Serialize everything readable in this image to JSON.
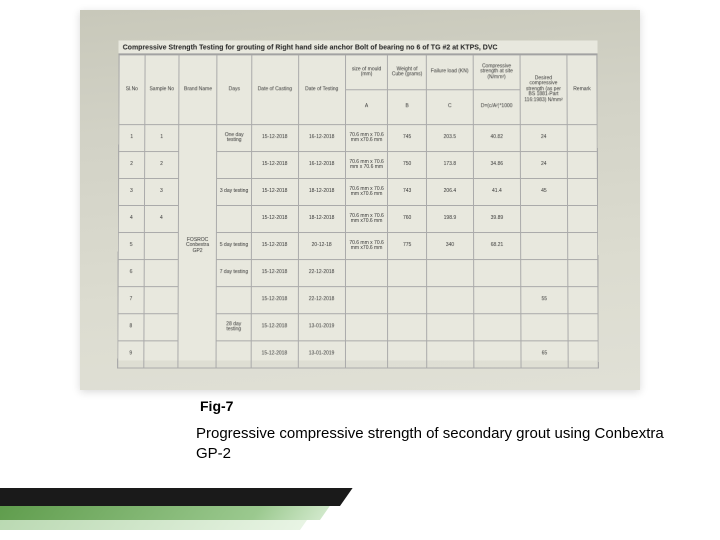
{
  "figLabel": "Fig-7",
  "caption": "Progressive compressive strength of secondary grout using Conbextra GP-2",
  "paperTitle": "Compressive Strength Testing for grouting of Right hand side anchor Bolt of bearing no 6 of TG #2 at KTPS, DVC",
  "table": {
    "headers": {
      "sl": "Sl.No",
      "sample": "Sample No",
      "brand": "Brand Name",
      "days": "Days",
      "cast": "Date of Casting",
      "test": "Date of Testing",
      "size": "size of mould (mm)",
      "weight": "Weight of Cube (grams)",
      "load": "Failure load (KN)",
      "strength": "Compressive strength at site (N/mm²)",
      "desired": "Desired compressive strength (as per BS 1881-Part 116:1983) N/mm²",
      "remark": "Remark"
    },
    "subheaders": {
      "sizeA": "A",
      "weightB": "B",
      "loadC": "C",
      "strengthD": "D=(c/A²)*1000"
    },
    "brandName": "FOSROC Conbextra GP2",
    "rows": [
      {
        "sl": "1",
        "sample": "1",
        "days": "One day testing",
        "cast": "15-12-2018",
        "test": "16-12-2018",
        "size": "70.6 mm x 70.6 mm x70.6 mm",
        "weight": "745",
        "load": "203.5",
        "strength": "40.82",
        "desired": "24",
        "remark": ""
      },
      {
        "sl": "2",
        "sample": "2",
        "days": "",
        "cast": "15-12-2018",
        "test": "16-12-2018",
        "size": "70.6 mm x 70.6 mm x 70.6 mm",
        "weight": "750",
        "load": "173.8",
        "strength": "34.86",
        "desired": "24",
        "remark": ""
      },
      {
        "sl": "3",
        "sample": "3",
        "days": "3 day testing",
        "cast": "15-12-2018",
        "test": "18-12-2018",
        "size": "70.6 mm x 70.6 mm x70.6 mm",
        "weight": "743",
        "load": "206.4",
        "strength": "41.4",
        "desired": "45",
        "remark": ""
      },
      {
        "sl": "4",
        "sample": "4",
        "days": "",
        "cast": "15-12-2018",
        "test": "18-12-2018",
        "size": "70.6 mm x 70.6 mm x70.6 mm",
        "weight": "760",
        "load": "198.9",
        "strength": "39.89",
        "desired": "",
        "remark": ""
      },
      {
        "sl": "5",
        "sample": "",
        "days": "5 day testing",
        "cast": "15-12-2018",
        "test": "20-12-18",
        "size": "70.6 mm x 70.6 mm x70.6 mm",
        "weight": "775",
        "load": "340",
        "strength": "68.21",
        "desired": "",
        "remark": ""
      },
      {
        "sl": "6",
        "sample": "",
        "days": "7 day testing",
        "cast": "15-12-2018",
        "test": "22-12-2018",
        "size": "",
        "weight": "",
        "load": "",
        "strength": "",
        "desired": "",
        "remark": ""
      },
      {
        "sl": "7",
        "sample": "",
        "days": "",
        "cast": "15-12-2018",
        "test": "22-12-2018",
        "size": "",
        "weight": "",
        "load": "",
        "strength": "",
        "desired": "55",
        "remark": ""
      },
      {
        "sl": "8",
        "sample": "",
        "days": "28 day testing",
        "cast": "15-12-2018",
        "test": "13-01-2019",
        "size": "",
        "weight": "",
        "load": "",
        "strength": "",
        "desired": "",
        "remark": ""
      },
      {
        "sl": "9",
        "sample": "",
        "days": "",
        "cast": "15-12-2018",
        "test": "13-01-2019",
        "size": "",
        "weight": "",
        "load": "",
        "strength": "",
        "desired": "65",
        "remark": ""
      }
    ]
  }
}
